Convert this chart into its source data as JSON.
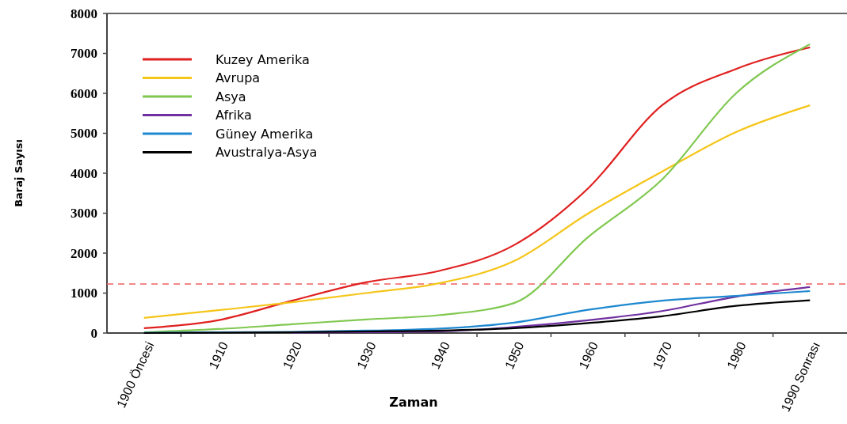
{
  "chart_data": {
    "type": "line",
    "xlabel": "Zaman",
    "ylabel": "Baraj Sayısı",
    "categories": [
      "1900 Öncesi",
      "1910",
      "1920",
      "1930",
      "1940",
      "1950",
      "1960",
      "1970",
      "1980",
      "1990 Sonrası"
    ],
    "ylim": [
      0,
      8000
    ],
    "yticks": [
      0,
      1000,
      2000,
      3000,
      4000,
      5000,
      6000,
      7000,
      8000
    ],
    "grid": false,
    "legend": "top left",
    "marker": "none",
    "line_style": "solid",
    "series": [
      {
        "name": "Kuzey Amerika",
        "color": "#e02020",
        "values": [
          120,
          320,
          810,
          1270,
          1560,
          2200,
          3620,
          5700,
          6610,
          7150
        ]
      },
      {
        "name": "Avrupa",
        "color": "#f5c518",
        "values": [
          380,
          570,
          770,
          1000,
          1250,
          1800,
          2990,
          4040,
          5030,
          5700
        ]
      },
      {
        "name": "Asya",
        "color": "#80c850",
        "values": [
          20,
          100,
          220,
          340,
          450,
          750,
          2400,
          3840,
          6000,
          7230
        ]
      },
      {
        "name": "Afrika",
        "color": "#7030a0",
        "values": [
          null,
          null,
          10,
          20,
          40,
          150,
          320,
          550,
          910,
          1150
        ]
      },
      {
        "name": "Güney Amerika",
        "color": "#1e88d0",
        "values": [
          10,
          20,
          30,
          60,
          110,
          260,
          580,
          810,
          930,
          1050
        ]
      },
      {
        "name": "Avustralya-Asya",
        "color": "#000000",
        "values": [
          0,
          10,
          20,
          40,
          60,
          120,
          250,
          420,
          680,
          820
        ]
      }
    ],
    "ref_lines": [
      {
        "axis": "y",
        "value": 1230,
        "color": "#f06060",
        "line_style": "dashed"
      }
    ]
  }
}
